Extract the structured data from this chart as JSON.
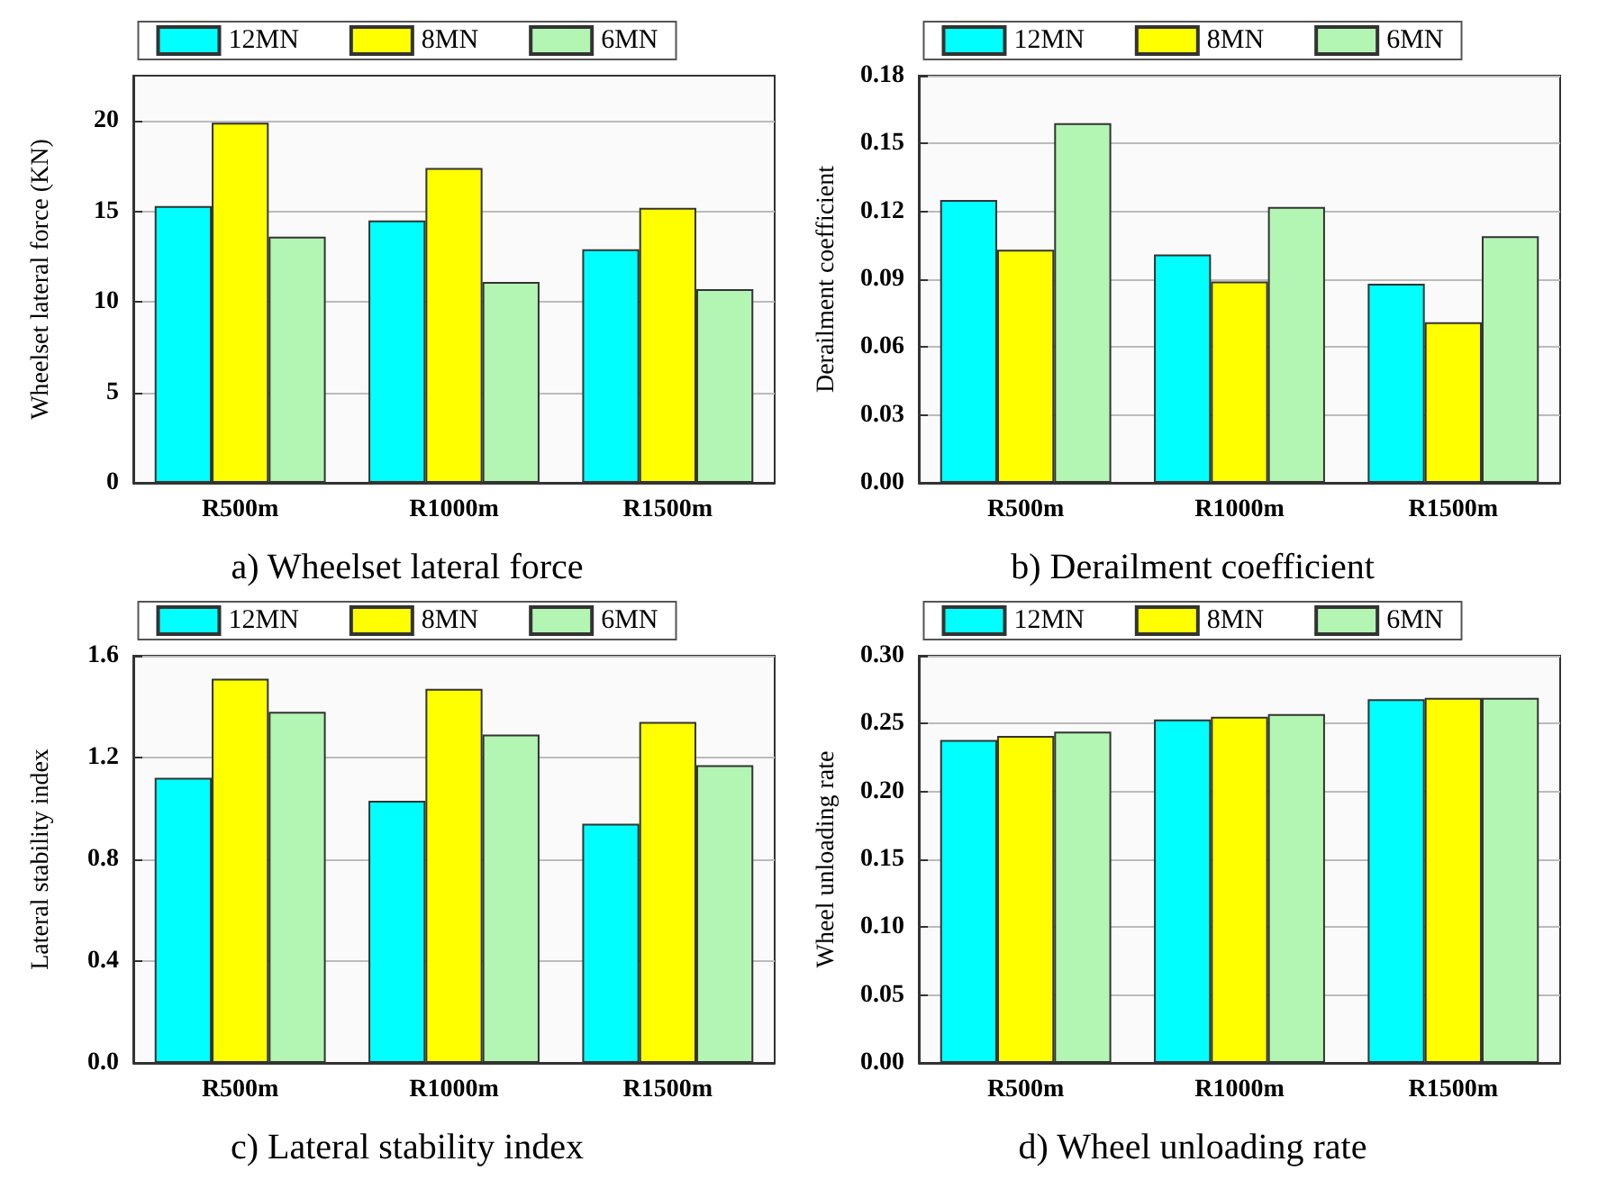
{
  "chart_data": [
    {
      "type": "bar",
      "title": "a) Wheelset lateral force",
      "ylabel": "Wheelset lateral force (KN)",
      "categories": [
        "R500m",
        "R1000m",
        "R1500m"
      ],
      "series": [
        {
          "name": "12MN",
          "color": "#00ffff",
          "values": [
            15.3,
            14.5,
            12.9
          ]
        },
        {
          "name": "8MN",
          "color": "#ffff00",
          "values": [
            19.9,
            17.4,
            15.2
          ]
        },
        {
          "name": "6MN",
          "color": "#b3f5b3",
          "values": [
            13.6,
            11.1,
            10.7
          ]
        }
      ],
      "ylim": [
        0,
        22.5
      ],
      "yticks": [
        0,
        5,
        10,
        15,
        20
      ],
      "grid": "y",
      "legend": "top"
    },
    {
      "type": "bar",
      "title": "b) Derailment coefficient",
      "ylabel": "Derailment coefficient",
      "categories": [
        "R500m",
        "R1000m",
        "R1500m"
      ],
      "series": [
        {
          "name": "12MN",
          "color": "#00ffff",
          "values": [
            0.125,
            0.101,
            0.088
          ]
        },
        {
          "name": "8MN",
          "color": "#ffff00",
          "values": [
            0.103,
            0.089,
            0.071
          ]
        },
        {
          "name": "6MN",
          "color": "#b3f5b3",
          "values": [
            0.159,
            0.122,
            0.109
          ]
        }
      ],
      "ylim": [
        0,
        0.18
      ],
      "yticks": [
        {
          "value": 0,
          "label": "0.00"
        },
        {
          "value": 0.03,
          "label": "0.03"
        },
        {
          "value": 0.06,
          "label": "0.06"
        },
        {
          "value": 0.09,
          "label": "0.09"
        },
        {
          "value": 0.12,
          "label": "0.12"
        },
        {
          "value": 0.15,
          "label": "0.15"
        },
        {
          "value": 0.18,
          "label": "0.18"
        }
      ],
      "grid": "y",
      "legend": "top"
    },
    {
      "type": "bar",
      "title": "c) Lateral stability index",
      "ylabel": "Lateral stability index",
      "categories": [
        "R500m",
        "R1000m",
        "R1500m"
      ],
      "series": [
        {
          "name": "12MN",
          "color": "#00ffff",
          "values": [
            1.12,
            1.03,
            0.94
          ]
        },
        {
          "name": "8MN",
          "color": "#ffff00",
          "values": [
            1.51,
            1.47,
            1.34
          ]
        },
        {
          "name": "6MN",
          "color": "#b3f5b3",
          "values": [
            1.38,
            1.29,
            1.17
          ]
        }
      ],
      "ylim": [
        0,
        1.6
      ],
      "yticks": [
        {
          "value": 0,
          "label": "0.0"
        },
        {
          "value": 0.4,
          "label": "0.4"
        },
        {
          "value": 0.8,
          "label": "0.8"
        },
        {
          "value": 1.2,
          "label": "1.2"
        },
        {
          "value": 1.6,
          "label": "1.6"
        }
      ],
      "grid": "y",
      "legend": "top"
    },
    {
      "type": "bar",
      "title": "d) Wheel unloading rate",
      "ylabel": "Wheel unloading rate",
      "categories": [
        "R500m",
        "R1000m",
        "R1500m"
      ],
      "series": [
        {
          "name": "12MN",
          "color": "#00ffff",
          "values": [
            0.238,
            0.253,
            0.268
          ]
        },
        {
          "name": "8MN",
          "color": "#ffff00",
          "values": [
            0.241,
            0.255,
            0.269
          ]
        },
        {
          "name": "6MN",
          "color": "#b3f5b3",
          "values": [
            0.244,
            0.257,
            0.269
          ]
        }
      ],
      "ylim": [
        0,
        0.3
      ],
      "yticks": [
        {
          "value": 0,
          "label": "0.00"
        },
        {
          "value": 0.05,
          "label": "0.05"
        },
        {
          "value": 0.1,
          "label": "0.10"
        },
        {
          "value": 0.15,
          "label": "0.15"
        },
        {
          "value": 0.2,
          "label": "0.20"
        },
        {
          "value": 0.25,
          "label": "0.25"
        },
        {
          "value": 0.3,
          "label": "0.30"
        }
      ],
      "grid": "y",
      "legend": "top"
    }
  ]
}
